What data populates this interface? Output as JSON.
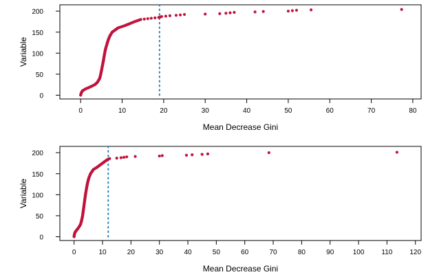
{
  "chart_data": [
    {
      "type": "scatter",
      "title": "",
      "xlabel": "Mean Decrease Gini",
      "ylabel": "Variable",
      "xlim": [
        -5,
        82
      ],
      "ylim": [
        -9,
        215
      ],
      "x_ticks": [
        0,
        10,
        20,
        30,
        40,
        50,
        60,
        70,
        80
      ],
      "y_ticks": [
        0,
        50,
        100,
        150,
        200
      ],
      "grid": false,
      "vertical_reference_line": 19,
      "point_color": "#C0143C",
      "line_color": "#1F7FB8",
      "sorted_values_knots": [
        [
          0,
          0
        ],
        [
          0.15,
          5
        ],
        [
          0.4,
          10
        ],
        [
          1.2,
          15
        ],
        [
          2.4,
          20
        ],
        [
          3.4,
          25
        ],
        [
          4.0,
          30
        ],
        [
          4.6,
          40
        ],
        [
          4.85,
          50
        ],
        [
          5.05,
          60
        ],
        [
          5.25,
          70
        ],
        [
          5.45,
          80
        ],
        [
          5.62,
          90
        ],
        [
          5.8,
          100
        ],
        [
          6.0,
          110
        ],
        [
          6.3,
          120
        ],
        [
          6.6,
          130
        ],
        [
          7.0,
          140
        ],
        [
          7.6,
          150
        ],
        [
          9.0,
          160
        ],
        [
          10.5,
          165
        ],
        [
          11.8,
          170
        ],
        [
          13.0,
          175
        ],
        [
          14.5,
          180
        ],
        [
          17,
          183
        ],
        [
          18.8,
          185
        ],
        [
          19.5,
          187
        ]
      ],
      "outliers": [
        [
          20.5,
          188
        ],
        [
          21.5,
          189
        ],
        [
          23,
          190
        ],
        [
          24,
          191
        ],
        [
          25,
          192
        ],
        [
          30,
          193
        ],
        [
          33.5,
          194
        ],
        [
          35,
          195
        ],
        [
          36,
          196
        ],
        [
          37,
          197
        ],
        [
          42,
          198
        ],
        [
          44,
          199
        ],
        [
          50,
          200
        ],
        [
          51,
          201
        ],
        [
          52,
          202
        ],
        [
          55.5,
          203
        ],
        [
          77.3,
          204
        ]
      ]
    },
    {
      "type": "scatter",
      "title": "",
      "xlabel": "Mean Decrease Gini",
      "ylabel": "Variable",
      "xlim": [
        -5,
        122
      ],
      "ylim": [
        -9,
        215
      ],
      "x_ticks": [
        0,
        10,
        20,
        30,
        40,
        50,
        60,
        70,
        80,
        90,
        100,
        110,
        120
      ],
      "y_ticks": [
        0,
        50,
        100,
        150,
        200
      ],
      "grid": false,
      "vertical_reference_line": 12,
      "point_color": "#C0143C",
      "line_color": "#1F7FB8",
      "sorted_values_knots": [
        [
          0,
          0
        ],
        [
          0.1,
          5
        ],
        [
          0.3,
          10
        ],
        [
          0.8,
          15
        ],
        [
          1.4,
          20
        ],
        [
          1.9,
          25
        ],
        [
          2.3,
          30
        ],
        [
          2.7,
          40
        ],
        [
          3.0,
          50
        ],
        [
          3.2,
          60
        ],
        [
          3.4,
          70
        ],
        [
          3.6,
          80
        ],
        [
          3.8,
          90
        ],
        [
          4.0,
          100
        ],
        [
          4.25,
          110
        ],
        [
          4.5,
          120
        ],
        [
          4.8,
          130
        ],
        [
          5.2,
          140
        ],
        [
          5.8,
          150
        ],
        [
          6.8,
          160
        ],
        [
          8.0,
          165
        ],
        [
          9.0,
          170
        ],
        [
          10.0,
          175
        ],
        [
          11.0,
          180
        ],
        [
          11.8,
          184
        ],
        [
          12.5,
          186
        ]
      ],
      "outliers": [
        [
          15,
          187
        ],
        [
          16.5,
          188
        ],
        [
          17.5,
          189
        ],
        [
          18.5,
          190
        ],
        [
          21.5,
          191
        ],
        [
          30,
          192
        ],
        [
          31,
          193
        ],
        [
          39.5,
          194
        ],
        [
          41.5,
          195
        ],
        [
          45,
          196
        ],
        [
          47,
          197
        ],
        [
          68.5,
          200
        ],
        [
          113.5,
          201
        ]
      ]
    }
  ]
}
